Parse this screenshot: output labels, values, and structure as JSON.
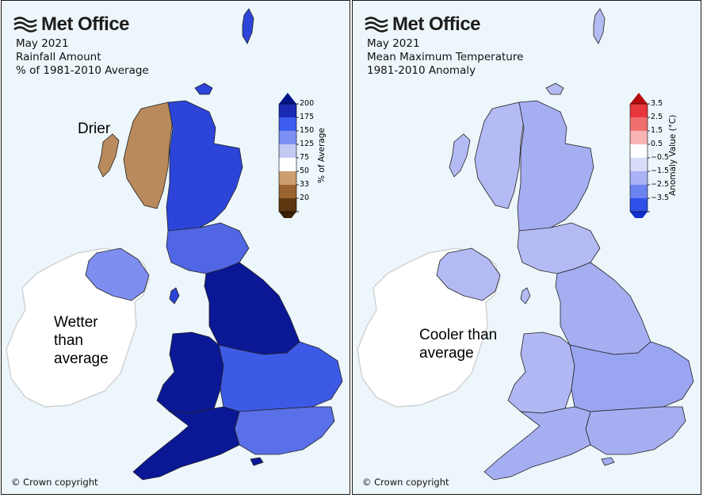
{
  "brand": "Met Office",
  "panels": [
    {
      "titles": [
        "May 2021",
        "Rainfall Amount",
        "% of 1981-2010 Average"
      ],
      "annotations": {
        "drier": "Drier",
        "wetter": [
          "Wetter",
          "than",
          "average"
        ]
      },
      "colorbar": {
        "label": "% of Average",
        "ticks": [
          "200",
          "175",
          "150",
          "125",
          "75",
          "50",
          "33",
          "20"
        ],
        "colors": [
          "#1a2ab5",
          "#3d5cf0",
          "#7c8ff2",
          "#c4c9f4",
          "#ffffff",
          "#cb9e6e",
          "#9b6330",
          "#5d3710"
        ],
        "tip_top": "#00148a",
        "tip_bottom": "#3a2005"
      },
      "copyright": "© Crown copyright"
    },
    {
      "titles": [
        "May 2021",
        "Mean Maximum Temperature",
        "1981-2010 Anomaly"
      ],
      "annotations": {
        "cooler": [
          "Cooler than",
          "average"
        ]
      },
      "colorbar": {
        "label": "Anomaly Value (°C)",
        "ticks": [
          "3.5",
          "2.5",
          "1.5",
          "0.5",
          "−0.5",
          "−1.5",
          "−2.5",
          "−3.5"
        ],
        "colors": [
          "#e8383d",
          "#f07070",
          "#f8b3b3",
          "#ffffff",
          "#d9dcf9",
          "#a9b3f5",
          "#6c83f2",
          "#2f50e8"
        ],
        "tip_top": "#b50d0d",
        "tip_bottom": "#0f2fcf"
      },
      "copyright": "© Crown copyright"
    }
  ],
  "map_colors": {
    "wet_dark": "#0a1896",
    "wet_mid": "#2c45d8",
    "wet_light": "#7d8ef0",
    "dry": "#b88a5c",
    "cool": "#b4baf3",
    "cool_dark": "#8f9cef",
    "ireland": "#ffffff",
    "outline": "#d3d6d9"
  }
}
